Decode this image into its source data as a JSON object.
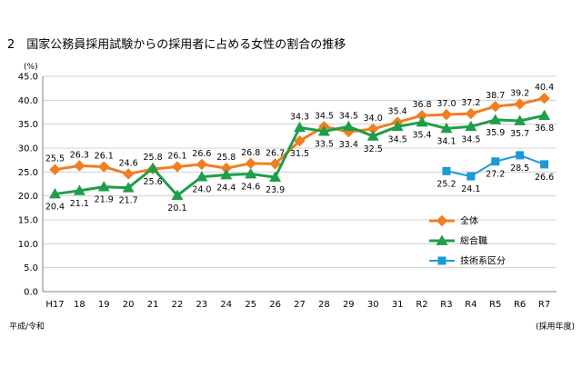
{
  "chart_data": {
    "type": "line",
    "title": "2　国家公務員採用試験からの採用者に占める女性の割合の推移",
    "y_unit": "(%)",
    "x_unit": "(採用年度)",
    "era_label": "平成/令和",
    "categories": [
      "H17",
      "18",
      "19",
      "20",
      "21",
      "22",
      "23",
      "24",
      "25",
      "26",
      "27",
      "28",
      "29",
      "30",
      "31",
      "R2",
      "R3",
      "R4",
      "R5",
      "R6",
      "R7"
    ],
    "ylim": [
      0,
      45
    ],
    "yticks": [
      "0.0",
      "5.0",
      "10.0",
      "15.0",
      "20.0",
      "25.0",
      "30.0",
      "35.0",
      "40.0",
      "45.0"
    ],
    "grid": true,
    "legend_position": "lower-right",
    "series": [
      {
        "name": "全体",
        "color": "#F07F22",
        "marker": "diamond",
        "values": [
          25.5,
          26.3,
          26.1,
          24.6,
          25.6,
          26.1,
          26.6,
          25.8,
          26.8,
          26.7,
          31.5,
          34.5,
          33.4,
          34.0,
          35.4,
          36.8,
          37.0,
          37.2,
          38.7,
          39.2,
          40.4
        ]
      },
      {
        "name": "総合職",
        "color": "#1E9E49",
        "marker": "triangle",
        "values": [
          20.4,
          21.1,
          21.9,
          21.7,
          25.8,
          20.1,
          24.0,
          24.4,
          24.6,
          23.9,
          34.3,
          33.5,
          34.5,
          32.5,
          34.5,
          35.4,
          34.1,
          34.5,
          35.9,
          35.7,
          36.8
        ]
      },
      {
        "name": "技術系区分",
        "color": "#1A9BD7",
        "marker": "square",
        "values": [
          null,
          null,
          null,
          null,
          null,
          null,
          null,
          null,
          null,
          null,
          null,
          null,
          null,
          null,
          null,
          null,
          25.2,
          24.1,
          27.2,
          28.5,
          26.6
        ]
      }
    ]
  }
}
